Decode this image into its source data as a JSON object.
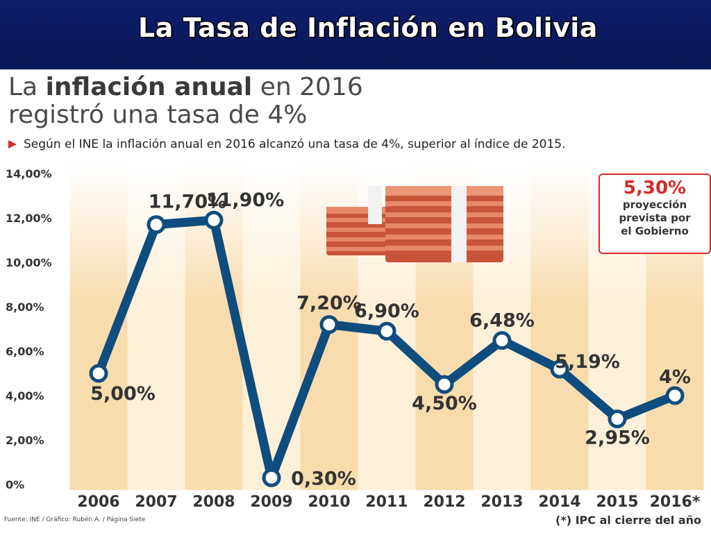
{
  "slide": {
    "title": "La Tasa de Inflación en Bolivia"
  },
  "infographic": {
    "headline_line1_a": "La ",
    "headline_line1_b": "inflación anual",
    "headline_line1_c": " en 2016",
    "headline_line2": "registró una tasa de 4%",
    "subhead": "Según el INE la inflación anual en 2016 alcanzó una tasa de 4%, superior al índice de 2015.",
    "projection": {
      "value": "5,30%",
      "text_line1": "proyección",
      "text_line2": "prevista por",
      "text_line3": "el Gobierno"
    },
    "source": "Fuente: INE / Gráfico: Rubén A. / Página Siete",
    "footnote": "(*) IPC al cierre del año",
    "money_icon": "money-stacks-icon"
  },
  "colors": {
    "header_bg": "#0d1e6b",
    "line": "#0f4d7e",
    "accent_red": "#d42a2a",
    "band_light": "#fdf0d8",
    "band_dark": "#f9dcae"
  },
  "chart_data": {
    "type": "line",
    "categories": [
      "2006",
      "2007",
      "2008",
      "2009",
      "2010",
      "2011",
      "2012",
      "2013",
      "2014",
      "2015",
      "2016*"
    ],
    "values": [
      5.0,
      11.7,
      11.9,
      0.3,
      7.2,
      6.9,
      4.5,
      6.48,
      5.19,
      2.95,
      4.0
    ],
    "data_labels": [
      "5,00%",
      "11,70%",
      "11,90%",
      "0,30%",
      "7,20%",
      "6,90%",
      "4,50%",
      "6,48%",
      "5,19%",
      "2,95%",
      "4%"
    ],
    "label_above": [
      false,
      true,
      true,
      false,
      true,
      true,
      false,
      true,
      true,
      false,
      true
    ],
    "y_ticks": [
      0,
      2,
      4,
      6,
      8,
      10,
      12,
      14
    ],
    "y_tick_labels": [
      "0%",
      "2,00%",
      "4,00%",
      "6,00%",
      "8,00%",
      "10,00%",
      "12,00%",
      "14,00%"
    ],
    "ylim": [
      0,
      14
    ],
    "grid": false
  }
}
